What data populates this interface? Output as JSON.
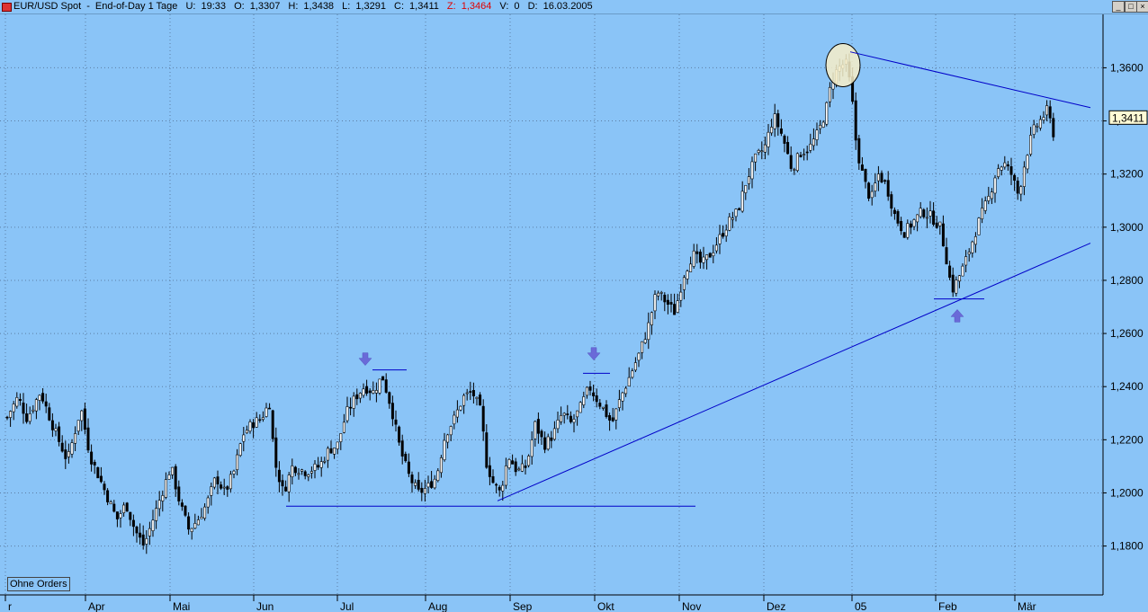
{
  "window": {
    "symbol": "EUR/USD Spot",
    "period": "End-of-Day 1 Tage",
    "stats": [
      {
        "label": "U:",
        "value": "19:33"
      },
      {
        "label": "O:",
        "value": "1,3307"
      },
      {
        "label": "H:",
        "value": "1,3438"
      },
      {
        "label": "L:",
        "value": "1,3291"
      },
      {
        "label": "C:",
        "value": "1,3411"
      },
      {
        "label": "Z:",
        "value": "1,3464",
        "color": "#e00000"
      },
      {
        "label": "V:",
        "value": "0"
      },
      {
        "label": "D:",
        "value": "16.03.2005"
      }
    ],
    "buttons": [
      "_",
      "□",
      "×"
    ]
  },
  "badge": "Ohne Orders",
  "chart_data": {
    "type": "candlestick",
    "x_tick_labels": [
      "r",
      "Apr",
      "Mai",
      "Jun",
      "Jul",
      "Aug",
      "Sep",
      "Okt",
      "Nov",
      "Dez",
      "05",
      "Feb",
      "Mär"
    ],
    "y_tick_labels": [
      "1,3600",
      "1,3400",
      "1,3200",
      "1,3000",
      "1,2800",
      "1,2600",
      "1,2400",
      "1,2200",
      "1,2000",
      "1,1800"
    ],
    "y_ticks": [
      1.36,
      1.34,
      1.32,
      1.3,
      1.28,
      1.26,
      1.24,
      1.22,
      1.2,
      1.18
    ],
    "ylim": [
      1.1616,
      1.3801
    ],
    "last_price_label": "1,3411",
    "last_price": 1.3411,
    "approx_close_path": [
      [
        0,
        1.222
      ],
      [
        10,
        1.23
      ],
      [
        20,
        1.236
      ],
      [
        30,
        1.228
      ],
      [
        45,
        1.238
      ],
      [
        60,
        1.224
      ],
      [
        75,
        1.212
      ],
      [
        90,
        1.232
      ],
      [
        100,
        1.214
      ],
      [
        110,
        1.206
      ],
      [
        120,
        1.198
      ],
      [
        130,
        1.19
      ],
      [
        140,
        1.196
      ],
      [
        150,
        1.186
      ],
      [
        160,
        1.18
      ],
      [
        170,
        1.19
      ],
      [
        180,
        1.2
      ],
      [
        190,
        1.21
      ],
      [
        200,
        1.196
      ],
      [
        210,
        1.186
      ],
      [
        220,
        1.19
      ],
      [
        230,
        1.196
      ],
      [
        240,
        1.206
      ],
      [
        250,
        1.2
      ],
      [
        260,
        1.208
      ],
      [
        270,
        1.222
      ],
      [
        280,
        1.226
      ],
      [
        290,
        1.228
      ],
      [
        300,
        1.234
      ],
      [
        305,
        1.212
      ],
      [
        315,
        1.2
      ],
      [
        325,
        1.21
      ],
      [
        340,
        1.208
      ],
      [
        355,
        1.21
      ],
      [
        365,
        1.216
      ],
      [
        375,
        1.218
      ],
      [
        385,
        1.23
      ],
      [
        395,
        1.236
      ],
      [
        405,
        1.24
      ],
      [
        415,
        1.238
      ],
      [
        425,
        1.244
      ],
      [
        435,
        1.232
      ],
      [
        445,
        1.216
      ],
      [
        455,
        1.206
      ],
      [
        465,
        1.2
      ],
      [
        475,
        1.202
      ],
      [
        485,
        1.206
      ],
      [
        495,
        1.222
      ],
      [
        505,
        1.228
      ],
      [
        515,
        1.236
      ],
      [
        525,
        1.238
      ],
      [
        535,
        1.23
      ],
      [
        540,
        1.212
      ],
      [
        548,
        1.204
      ],
      [
        556,
        1.2
      ],
      [
        565,
        1.214
      ],
      [
        575,
        1.208
      ],
      [
        585,
        1.21
      ],
      [
        595,
        1.226
      ],
      [
        605,
        1.218
      ],
      [
        615,
        1.222
      ],
      [
        625,
        1.23
      ],
      [
        635,
        1.226
      ],
      [
        645,
        1.232
      ],
      [
        655,
        1.24
      ],
      [
        662,
        1.236
      ],
      [
        670,
        1.232
      ],
      [
        680,
        1.226
      ],
      [
        690,
        1.236
      ],
      [
        700,
        1.244
      ],
      [
        710,
        1.252
      ],
      [
        720,
        1.262
      ],
      [
        730,
        1.276
      ],
      [
        740,
        1.272
      ],
      [
        750,
        1.268
      ],
      [
        760,
        1.282
      ],
      [
        770,
        1.29
      ],
      [
        780,
        1.286
      ],
      [
        790,
        1.29
      ],
      [
        800,
        1.296
      ],
      [
        810,
        1.302
      ],
      [
        820,
        1.306
      ],
      [
        830,
        1.318
      ],
      [
        840,
        1.326
      ],
      [
        850,
        1.33
      ],
      [
        860,
        1.342
      ],
      [
        870,
        1.334
      ],
      [
        880,
        1.322
      ],
      [
        890,
        1.328
      ],
      [
        900,
        1.33
      ],
      [
        910,
        1.336
      ],
      [
        918,
        1.344
      ],
      [
        925,
        1.356
      ],
      [
        932,
        1.36
      ],
      [
        940,
        1.362
      ],
      [
        946,
        1.352
      ],
      [
        952,
        1.33
      ],
      [
        960,
        1.318
      ],
      [
        968,
        1.31
      ],
      [
        976,
        1.32
      ],
      [
        985,
        1.316
      ],
      [
        995,
        1.304
      ],
      [
        1005,
        1.298
      ],
      [
        1015,
        1.302
      ],
      [
        1025,
        1.306
      ],
      [
        1035,
        1.304
      ],
      [
        1045,
        1.3
      ],
      [
        1052,
        1.288
      ],
      [
        1058,
        1.276
      ],
      [
        1064,
        1.28
      ],
      [
        1072,
        1.286
      ],
      [
        1080,
        1.294
      ],
      [
        1090,
        1.304
      ],
      [
        1100,
        1.312
      ],
      [
        1108,
        1.322
      ],
      [
        1116,
        1.324
      ],
      [
        1124,
        1.32
      ],
      [
        1132,
        1.312
      ],
      [
        1140,
        1.326
      ],
      [
        1148,
        1.336
      ],
      [
        1156,
        1.34
      ],
      [
        1164,
        1.344
      ],
      [
        1172,
        1.334
      ]
    ],
    "trendlines": [
      {
        "x1": 318,
        "y1": 1.195,
        "x2": 773,
        "y2": 1.195
      },
      {
        "x1": 553,
        "y1": 1.197,
        "x2": 1212,
        "y2": 1.294
      },
      {
        "x1": 945,
        "y1": 1.366,
        "x2": 1212,
        "y2": 1.345
      },
      {
        "x1": 414,
        "y1": 1.2463,
        "x2": 452,
        "y2": 1.2463
      },
      {
        "x1": 648,
        "y1": 1.245,
        "x2": 678,
        "y2": 1.245
      },
      {
        "x1": 1038,
        "y1": 1.273,
        "x2": 1094,
        "y2": 1.273
      }
    ],
    "arrows": [
      {
        "x": 406,
        "y": 1.25,
        "dir": "down"
      },
      {
        "x": 660,
        "y": 1.252,
        "dir": "down"
      },
      {
        "x": 1064,
        "y": 1.267,
        "dir": "up"
      }
    ],
    "highlight": {
      "x": 937,
      "y": 1.361
    },
    "colors": {
      "background": "#8ac4f7",
      "candles": "#000000",
      "trendline": "#0000c8",
      "arrows": "#6a6ad8",
      "grid": "#5c7ea4",
      "highlight": "#f7efc8"
    }
  }
}
